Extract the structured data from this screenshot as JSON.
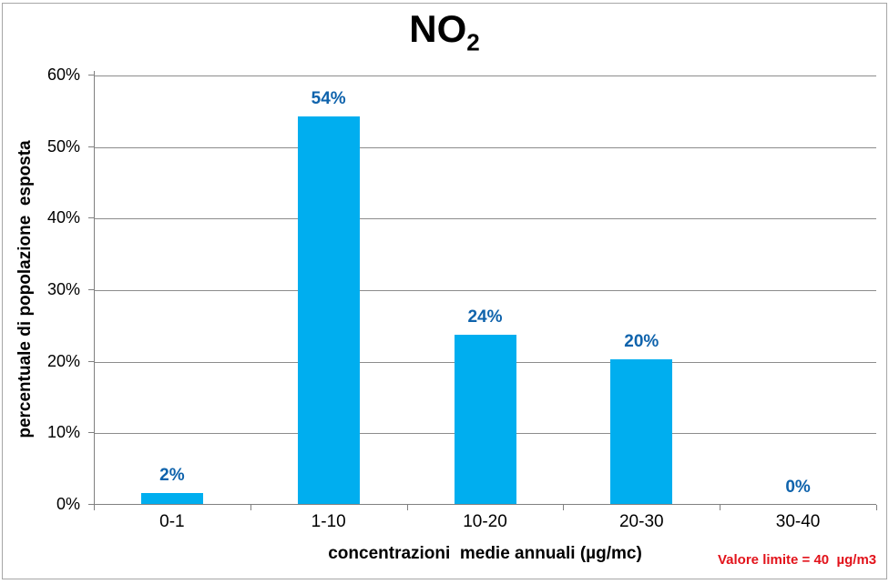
{
  "chart_data": {
    "type": "bar",
    "title_main": "NO",
    "title_sub": "2",
    "categories": [
      "0-1",
      "1-10",
      "10-20",
      "20-30",
      "30-40"
    ],
    "values": [
      2,
      54,
      24,
      20,
      0
    ],
    "bar_heights_precise": [
      1.6,
      54.3,
      23.8,
      20.4,
      0
    ],
    "data_labels": [
      "2%",
      "54%",
      "24%",
      "20%",
      "0%"
    ],
    "xlabel": "concentrazioni  medie annuali (µg/mc)",
    "ylabel": "percentuale di popolazione  esposta",
    "ylim": [
      0,
      60
    ],
    "ytick_step": 10,
    "ytick_labels": [
      "0%",
      "10%",
      "20%",
      "30%",
      "40%",
      "50%",
      "60%"
    ],
    "grid": true,
    "legend": false,
    "annotation": "Valore limite = 40  µg/m3",
    "colors": {
      "bar": "#00aeef",
      "data_label": "#0f63ac",
      "annotation": "#e2131b",
      "axis": "#808080",
      "grid": "#8c8c8c",
      "title": "#000000",
      "background": "#ffffff"
    }
  }
}
